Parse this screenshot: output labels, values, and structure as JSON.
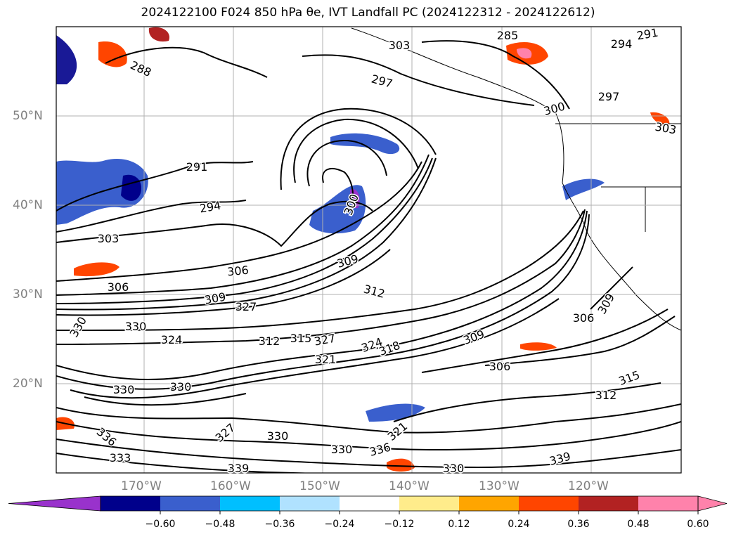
{
  "title": "2024122100 F024 850 hPa θe, IVT Landfall PC (2024122312 - 2024122612)",
  "axes": {
    "lat_labels": [
      "50°N",
      "40°N",
      "30°N",
      "20°N"
    ],
    "lon_labels": [
      "170°W",
      "160°W",
      "150°W",
      "140°W",
      "130°W",
      "120°W"
    ]
  },
  "contour_labels": [
    "303",
    "285",
    "291",
    "294",
    "288",
    "297",
    "300",
    "297",
    "303",
    "291",
    "294",
    "300",
    "303",
    "306",
    "306",
    "309",
    "312",
    "309",
    "327",
    "330",
    "330",
    "324",
    "312",
    "315",
    "327",
    "324",
    "318",
    "321",
    "309",
    "306",
    "330",
    "330",
    "336",
    "327",
    "330",
    "330",
    "336",
    "333",
    "339",
    "321",
    "330",
    "339",
    "312",
    "315",
    "306",
    "309"
  ],
  "colorbar": {
    "ticks": [
      "−0.60",
      "−0.48",
      "−0.36",
      "−0.24",
      "−0.12",
      "0.12",
      "0.24",
      "0.36",
      "0.48",
      "0.60"
    ],
    "colors": [
      "#9932cc",
      "#00008b",
      "#3a5fcd",
      "#00bfff",
      "#b0e2ff",
      "#ffffff",
      "#ffec8b",
      "#ffa500",
      "#ff4500",
      "#b22222",
      "#ff82ab",
      "#ff82ab"
    ]
  }
}
